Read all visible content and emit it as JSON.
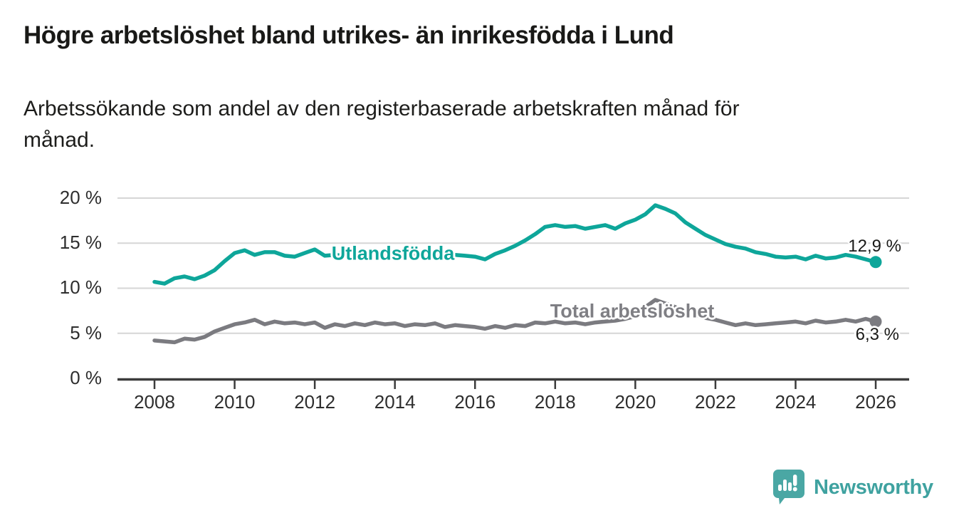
{
  "header": {
    "title": "Högre arbetslöshet bland utrikes- än inrikesfödda i Lund",
    "subtitle_lines": [
      "Arbetssökande som andel av den registerbaserade arbetskraften månad för",
      "månad."
    ]
  },
  "footer": {
    "brand": "Newsworthy",
    "logo_icon": "newsworthy-speech-bubble-bar-chart-icon"
  },
  "chart_data": {
    "type": "line",
    "title": "Högre arbetslöshet bland utrikes- än inrikesfödda i Lund",
    "subtitle": "Arbetssökande som andel av den registerbaserade arbetskraften månad för månad.",
    "xlabel": "",
    "ylabel": "",
    "ylim": [
      0,
      20
    ],
    "xlim": [
      2007.1,
      2026.85
    ],
    "grid": "horizontal",
    "legend_position": "inline-labels-on-lines",
    "axis_color": "#3c3c3c",
    "grid_color": "#d6d6d6",
    "y_ticks": [
      0,
      5,
      10,
      15,
      20
    ],
    "y_tick_labels": [
      "0 %",
      "5 %",
      "10 %",
      "15 %",
      "20 %"
    ],
    "x_ticks": [
      2008,
      2010,
      2012,
      2014,
      2016,
      2018,
      2020,
      2022,
      2024,
      2026
    ],
    "x_tick_labels": [
      "2008",
      "2010",
      "2012",
      "2014",
      "2016",
      "2018",
      "2020",
      "2022",
      "2024",
      "2026"
    ],
    "x": [
      2008,
      2008.25,
      2008.5,
      2008.75,
      2009,
      2009.25,
      2009.5,
      2009.75,
      2010,
      2010.25,
      2010.5,
      2010.75,
      2011,
      2011.25,
      2011.5,
      2011.75,
      2012,
      2012.25,
      2012.5,
      2012.75,
      2013,
      2013.25,
      2013.5,
      2013.75,
      2014,
      2014.25,
      2014.5,
      2014.75,
      2015,
      2015.25,
      2015.5,
      2015.75,
      2016,
      2016.25,
      2016.5,
      2016.75,
      2017,
      2017.25,
      2017.5,
      2017.75,
      2018,
      2018.25,
      2018.5,
      2018.75,
      2019,
      2019.25,
      2019.5,
      2019.75,
      2020,
      2020.25,
      2020.5,
      2020.75,
      2021,
      2021.25,
      2021.5,
      2021.75,
      2022,
      2022.25,
      2022.5,
      2022.75,
      2023,
      2023.25,
      2023.5,
      2023.75,
      2024,
      2024.25,
      2024.5,
      2024.75,
      2025,
      2025.25,
      2025.5,
      2025.75,
      2026
    ],
    "series": [
      {
        "name": "Utlandsfödda",
        "color": "#0ea69a",
        "end_label": "12,9 %",
        "end_value": 12.9,
        "values": [
          10.7,
          10.5,
          11.1,
          11.3,
          11.0,
          11.4,
          12.0,
          13.0,
          13.9,
          14.2,
          13.7,
          14.0,
          14.0,
          13.6,
          13.5,
          13.9,
          14.3,
          13.6,
          13.7,
          13.6,
          13.8,
          13.7,
          13.9,
          13.8,
          13.7,
          13.8,
          13.6,
          13.7,
          13.8,
          13.6,
          13.7,
          13.6,
          13.5,
          13.2,
          13.8,
          14.2,
          14.7,
          15.3,
          16.0,
          16.8,
          17.0,
          16.8,
          16.9,
          16.6,
          16.8,
          17.0,
          16.6,
          17.2,
          17.6,
          18.2,
          19.2,
          18.8,
          18.3,
          17.3,
          16.6,
          15.9,
          15.4,
          14.9,
          14.6,
          14.4,
          14.0,
          13.8,
          13.5,
          13.4,
          13.5,
          13.2,
          13.6,
          13.3,
          13.4,
          13.7,
          13.5,
          13.2,
          12.9
        ]
      },
      {
        "name": "Total arbetslöshet",
        "color": "#7b7b80",
        "end_label": "6,3 %",
        "end_value": 6.3,
        "values": [
          4.2,
          4.1,
          4.0,
          4.4,
          4.3,
          4.6,
          5.2,
          5.6,
          6.0,
          6.2,
          6.5,
          6.0,
          6.3,
          6.1,
          6.2,
          6.0,
          6.2,
          5.6,
          6.0,
          5.8,
          6.1,
          5.9,
          6.2,
          6.0,
          6.1,
          5.8,
          6.0,
          5.9,
          6.1,
          5.7,
          5.9,
          5.8,
          5.7,
          5.5,
          5.8,
          5.6,
          5.9,
          5.8,
          6.2,
          6.1,
          6.3,
          6.1,
          6.2,
          6.0,
          6.2,
          6.3,
          6.4,
          6.6,
          6.9,
          7.9,
          8.7,
          8.3,
          7.9,
          7.4,
          7.0,
          6.7,
          6.5,
          6.2,
          5.9,
          6.1,
          5.9,
          6.0,
          6.1,
          6.2,
          6.3,
          6.1,
          6.4,
          6.2,
          6.3,
          6.5,
          6.3,
          6.6,
          6.3
        ]
      }
    ]
  }
}
